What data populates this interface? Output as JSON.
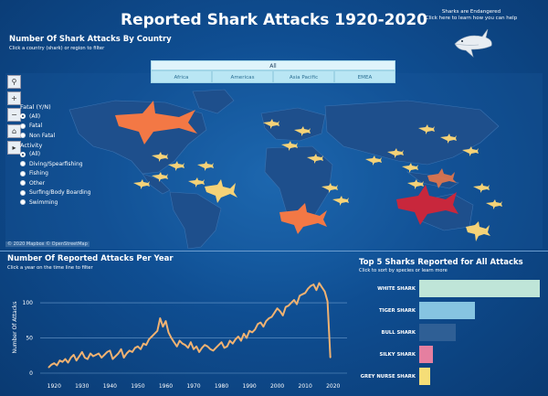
{
  "header": {
    "title": "Reported Shark Attacks 1920-2020",
    "endangered_line1": "Sharks are Endangered",
    "endangered_line2": "Click here to learn how you can help"
  },
  "map_section": {
    "title": "Number Of Shark Attacks By Country",
    "subtitle": "Click a country (shark) or region to filter",
    "regions": {
      "all": "All",
      "items": [
        "Africa",
        "Americas",
        "Asia Pacific",
        "EMEA"
      ]
    },
    "attribution": "© 2020 Mapbox © OpenStreetMap"
  },
  "filters": {
    "fatal_label": "Fatal (Y/N)",
    "fatal_options": [
      "(All)",
      "Fatal",
      "Non Fatal"
    ],
    "activity_label": "Activity",
    "activity_options": [
      "(All)",
      "Diving/Spearfishing",
      "Fishing",
      "Other",
      "Surfing/Body Boarding",
      "Swimming"
    ]
  },
  "map_tools": {
    "search": "search-icon",
    "zoom_in": "+",
    "zoom_out": "−",
    "home": "home-icon",
    "pan": "play-icon"
  },
  "colors": {
    "background": "#0f4e92",
    "land": "#1e4f8c",
    "shark_orange": "#f37845",
    "shark_red": "#c8273c",
    "shark_yellow": "#f5d277",
    "line": "#f0b272"
  },
  "chart_data": [
    {
      "type": "line",
      "title": "Number Of Reported Attacks Per Year",
      "subtitle": "Click a year on the time line to filter",
      "ylabel": "Number Of Attacks",
      "xlabel": "",
      "xlim": [
        1915,
        2025
      ],
      "ylim": [
        0,
        130
      ],
      "yticks": [
        0,
        50,
        100
      ],
      "xticks": [
        1920,
        1930,
        1940,
        1950,
        1960,
        1970,
        1980,
        1990,
        2000,
        2010,
        2020
      ],
      "x": [
        1918,
        1919,
        1920,
        1921,
        1922,
        1923,
        1924,
        1925,
        1926,
        1927,
        1928,
        1929,
        1930,
        1931,
        1932,
        1933,
        1934,
        1935,
        1936,
        1937,
        1938,
        1939,
        1940,
        1941,
        1942,
        1943,
        1944,
        1945,
        1946,
        1947,
        1948,
        1949,
        1950,
        1951,
        1952,
        1953,
        1954,
        1955,
        1956,
        1957,
        1958,
        1959,
        1960,
        1961,
        1962,
        1963,
        1964,
        1965,
        1966,
        1967,
        1968,
        1969,
        1970,
        1971,
        1972,
        1973,
        1974,
        1975,
        1976,
        1977,
        1978,
        1979,
        1980,
        1981,
        1982,
        1983,
        1984,
        1985,
        1986,
        1987,
        1988,
        1989,
        1990,
        1991,
        1992,
        1993,
        1994,
        1995,
        1996,
        1997,
        1998,
        1999,
        2000,
        2001,
        2002,
        2003,
        2004,
        2005,
        2006,
        2007,
        2008,
        2009,
        2010,
        2011,
        2012,
        2013,
        2014,
        2015,
        2016,
        2017,
        2018,
        2019
      ],
      "y": [
        8,
        12,
        14,
        11,
        18,
        16,
        20,
        15,
        22,
        26,
        18,
        24,
        30,
        22,
        20,
        28,
        24,
        26,
        28,
        22,
        26,
        30,
        32,
        20,
        24,
        28,
        34,
        22,
        28,
        32,
        30,
        36,
        38,
        34,
        42,
        40,
        48,
        52,
        56,
        60,
        78,
        66,
        74,
        58,
        50,
        44,
        38,
        46,
        42,
        40,
        36,
        44,
        34,
        38,
        30,
        36,
        40,
        38,
        34,
        32,
        36,
        40,
        44,
        36,
        38,
        46,
        42,
        48,
        52,
        46,
        56,
        50,
        60,
        58,
        62,
        70,
        72,
        66,
        74,
        78,
        80,
        86,
        92,
        88,
        82,
        94,
        96,
        100,
        104,
        98,
        110,
        112,
        114,
        120,
        124,
        126,
        118,
        128,
        122,
        116,
        102,
        22
      ]
    },
    {
      "type": "bar",
      "title": "Top 5 Sharks Reported for All Attacks",
      "subtitle": "Click to sort by species or learn more",
      "categories": [
        "WHITE SHARK",
        "TIGER SHARK",
        "BULL SHARK",
        "SILKY SHARK",
        "GREY NURSE SHARK"
      ],
      "values": [
        100,
        46,
        30,
        11,
        9
      ],
      "colors": [
        "#bfe5d8",
        "#86c4e1",
        "#2f5f95",
        "#e57fa0",
        "#f5dd77"
      ]
    }
  ]
}
